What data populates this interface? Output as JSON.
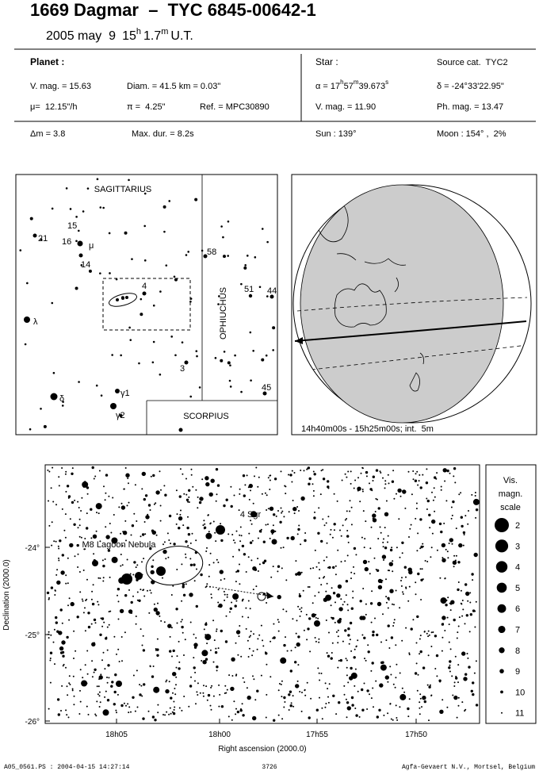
{
  "header": {
    "title": "1669 Dagmar  –  TYC 6845-00642-1",
    "date": "2005 may  9",
    "hour": "15",
    "hour_unit": "h",
    "minute": "1.7",
    "minute_unit": "m",
    "time_system": "U.T."
  },
  "planet": {
    "heading": "Planet :",
    "vmag": "V. mag. = 15.63",
    "diameter": "Diam. = 41.5 km = 0.03\"",
    "motion": "μ=  12.15\"/h",
    "parallax": "π =  4.25\"",
    "reference": "Ref. = MPC30890"
  },
  "star": {
    "heading": "Star :",
    "source": "Source cat.  TYC2",
    "ra": {
      "prefix": "α = 17",
      "h": "h",
      "min": "57",
      "m": "m",
      "sec": "39.673",
      "s": "s"
    },
    "dec": "δ = -24°33'22.95\"",
    "vmag": "V. mag. = 11.90",
    "phmag": "Ph. mag. = 13.47"
  },
  "event": {
    "delta_mag": "Δm = 3.8",
    "max_duration": "Max. dur. = 8.2s",
    "sun": "Sun : 139°",
    "moon": "Moon : 154° ,  2%"
  },
  "finder": {
    "constellations": [
      "SAGITTARIUS",
      "OPHIUCHUS",
      "SCORPIUS"
    ],
    "star_labels": [
      "15",
      "16",
      "μ",
      "14",
      "21",
      "4",
      "58",
      "51",
      "44",
      "λ",
      "3",
      "45",
      "δ",
      "γ1",
      "γ2"
    ]
  },
  "globe": {
    "caption": "14h40m00s - 15h25m00s; int.  5m"
  },
  "detail": {
    "annotations": [
      "4 Sgr",
      "M8 Lagoon Nebula"
    ],
    "x_ticks": [
      "18h05",
      "18h00",
      "17h55",
      "17h50"
    ],
    "y_ticks": [
      "-24°",
      "-25°",
      "-26°"
    ],
    "x_label": "Right ascension (2000.0)",
    "y_label": "Declination (2000.0)"
  },
  "magnitude_scale": {
    "title": [
      "Vis.",
      "magn.",
      "scale"
    ],
    "values": [
      2,
      3,
      4,
      5,
      6,
      7,
      8,
      9,
      10,
      11
    ]
  },
  "footer": {
    "file": "A05_0561.PS : 2004-04-15 14:27:14",
    "number": "3726",
    "credit": "Agfa-Gevaert N.V., Mortsel, Belgium"
  }
}
